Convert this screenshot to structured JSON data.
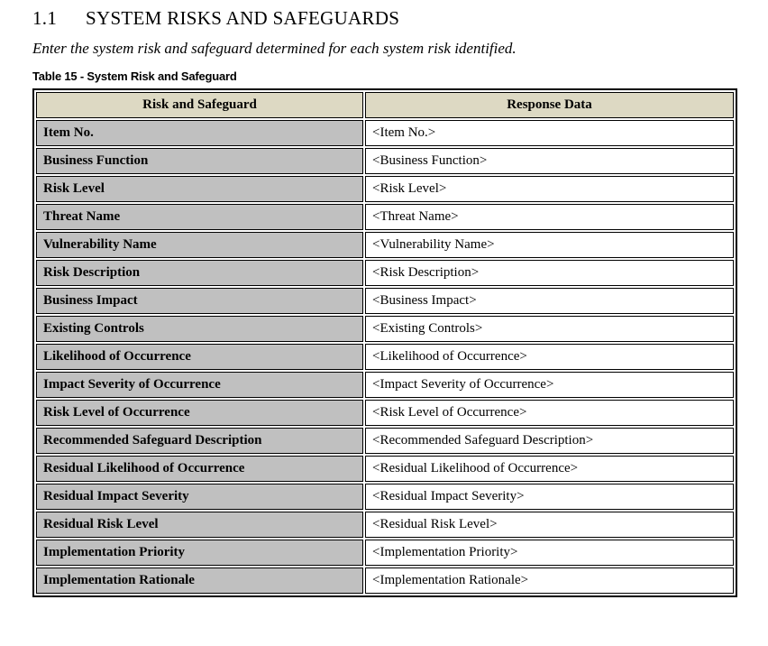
{
  "heading": {
    "number": "1.1",
    "title": "SYSTEM RISKS AND SAFEGUARDS"
  },
  "instruction": "Enter the system risk and safeguard determined for each system risk identified.",
  "table": {
    "caption": "Table 15 - System Risk and Safeguard",
    "headers": [
      "Risk and Safeguard",
      "Response Data"
    ],
    "rows": [
      {
        "label": "Item No.",
        "value": "<Item No.>"
      },
      {
        "label": "Business Function",
        "value": "<Business Function>"
      },
      {
        "label": "Risk Level",
        "value": "<Risk Level>"
      },
      {
        "label": "Threat Name",
        "value": "<Threat Name>"
      },
      {
        "label": "Vulnerability Name",
        "value": "<Vulnerability Name>"
      },
      {
        "label": "Risk Description",
        "value": "<Risk Description>"
      },
      {
        "label": "Business Impact",
        "value": "<Business Impact>"
      },
      {
        "label": "Existing Controls",
        "value": "<Existing Controls>"
      },
      {
        "label": "Likelihood of Occurrence",
        "value": "<Likelihood of Occurrence>"
      },
      {
        "label": "Impact Severity of Occurrence",
        "value": "<Impact Severity of Occurrence>"
      },
      {
        "label": "Risk Level of Occurrence",
        "value": "<Risk Level of Occurrence>"
      },
      {
        "label": "Recommended Safeguard Description",
        "value": "<Recommended Safeguard Description>"
      },
      {
        "label": "Residual Likelihood of Occurrence",
        "value": "<Residual Likelihood of Occurrence>"
      },
      {
        "label": "Residual Impact Severity",
        "value": "<Residual Impact Severity>"
      },
      {
        "label": "Residual Risk Level",
        "value": "<Residual Risk Level>"
      },
      {
        "label": "Implementation Priority",
        "value": "<Implementation Priority>"
      },
      {
        "label": "Implementation Rationale",
        "value": "<Implementation Rationale>"
      }
    ]
  },
  "colors": {
    "header_bg": "#ddd9c3",
    "label_bg": "#c0c0c0",
    "border": "#000000",
    "page_bg": "#ffffff"
  }
}
